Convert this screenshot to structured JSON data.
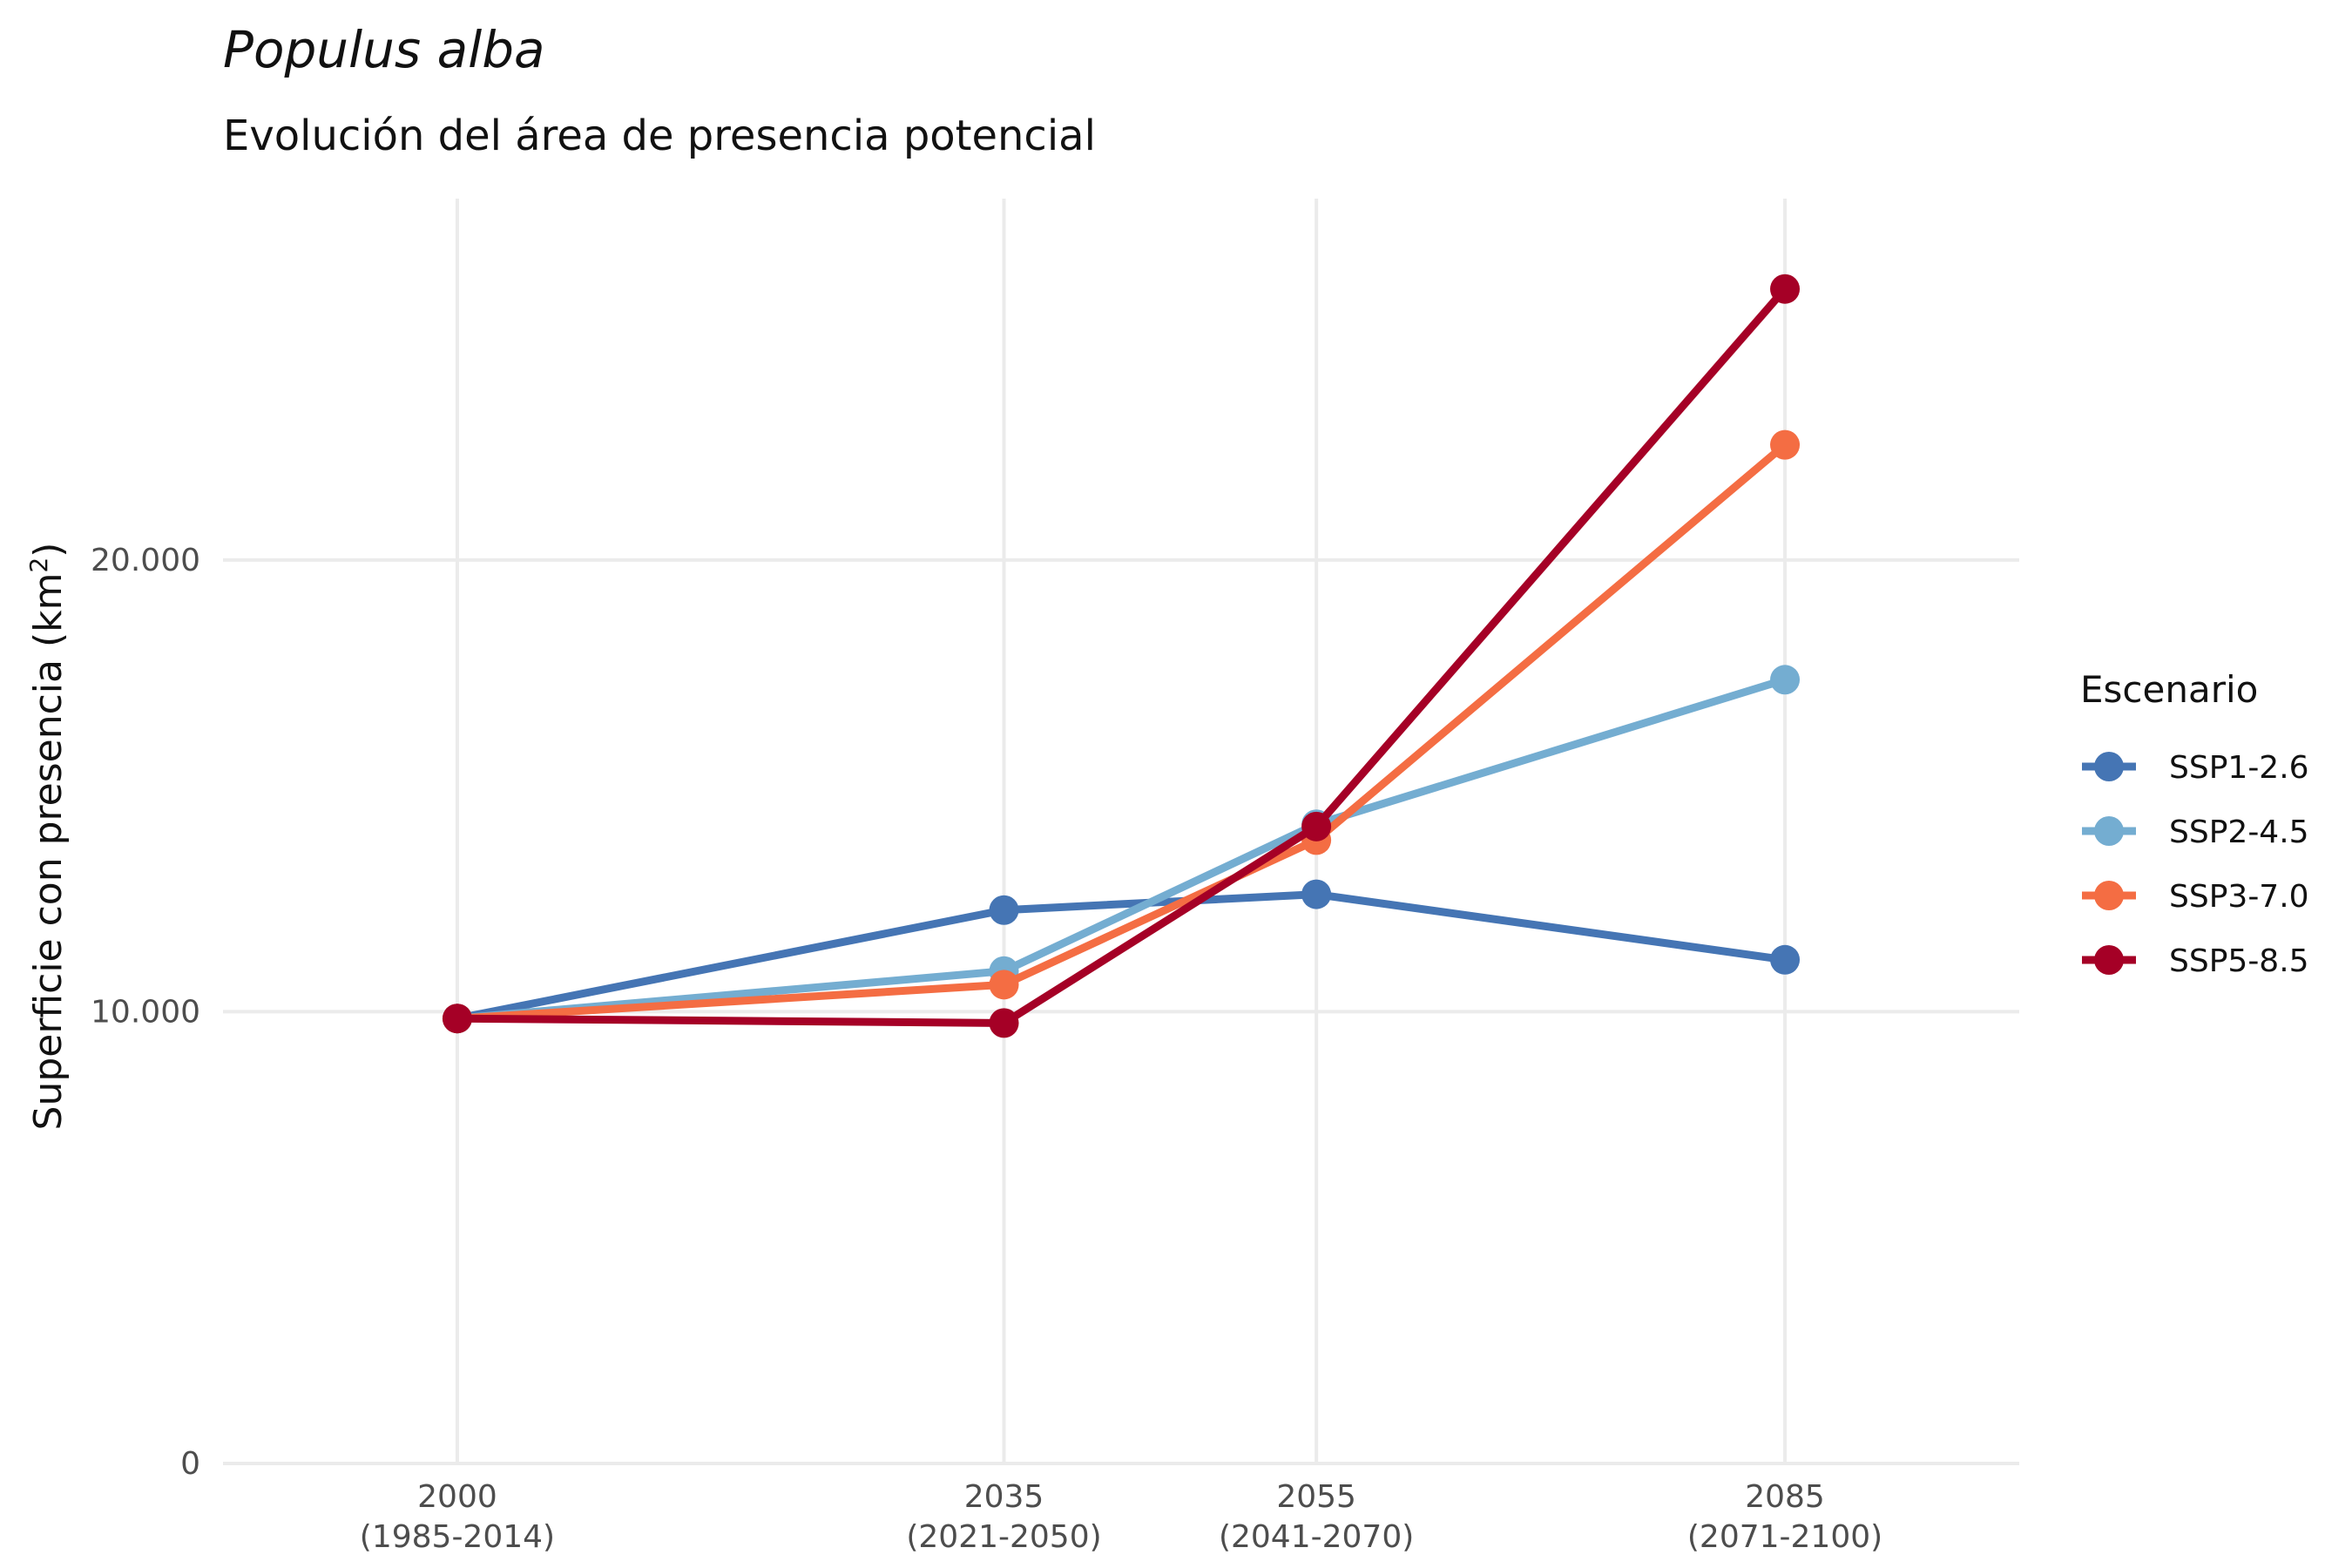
{
  "chart_data": {
    "type": "line",
    "title": "Populus alba",
    "subtitle": "Evolución del área de presencia potencial",
    "ylabel": "Superficie con presencia (km²)",
    "ylabel_main": "Superficie con presencia (km",
    "ylabel_sup": "2",
    "ylabel_end": ")",
    "xlabel": "",
    "x": [
      2000,
      2035,
      2055,
      2085
    ],
    "x_tick_labels": [
      {
        "year": "2000",
        "period": "(1985-2014)"
      },
      {
        "year": "2035",
        "period": "(2021-2050)"
      },
      {
        "year": "2055",
        "period": "(2041-2070)"
      },
      {
        "year": "2085",
        "period": "(2071-2100)"
      }
    ],
    "xlim": [
      1985,
      2100
    ],
    "ylim": [
      0,
      28000
    ],
    "y_ticks": [
      0,
      10000,
      20000
    ],
    "y_tick_labels": [
      "0",
      "10.000",
      "20.000"
    ],
    "grid": true,
    "legend": {
      "title": "Escenario",
      "position": "right"
    },
    "series": [
      {
        "name": "SSP1-2.6",
        "color": "#4575b4",
        "values": [
          9850,
          12250,
          12600,
          11150
        ]
      },
      {
        "name": "SSP2-4.5",
        "color": "#74add1",
        "values": [
          9850,
          10900,
          14150,
          17350
        ]
      },
      {
        "name": "SSP3-7.0",
        "color": "#f46d43",
        "values": [
          9850,
          10600,
          13800,
          22550
        ]
      },
      {
        "name": "SSP5-8.5",
        "color": "#a50026",
        "values": [
          9850,
          9750,
          14100,
          26000
        ]
      }
    ]
  }
}
